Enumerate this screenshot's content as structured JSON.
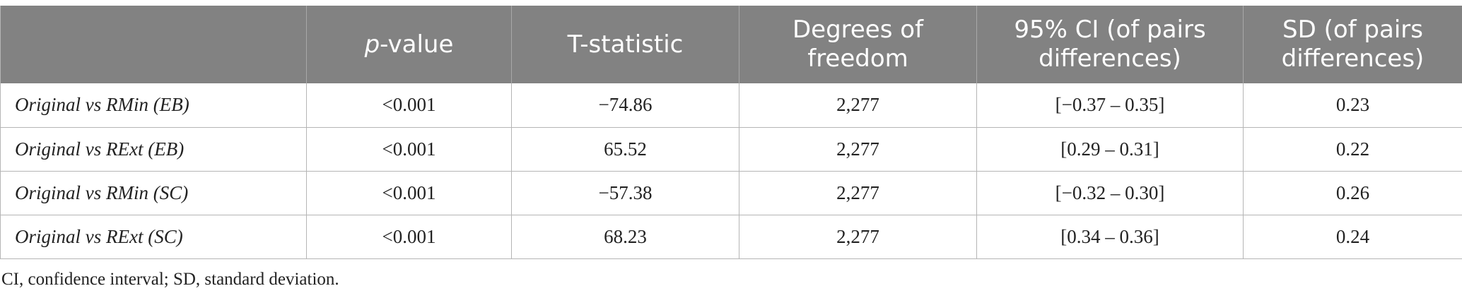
{
  "table": {
    "headers": [
      {
        "prefix": "",
        "label": ""
      },
      {
        "prefix": "p",
        "label": "-value"
      },
      {
        "prefix": "",
        "label": "T-statistic"
      },
      {
        "prefix": "",
        "label": "Degrees of freedom"
      },
      {
        "prefix": "",
        "label": "95% CI (of pairs differences)"
      },
      {
        "prefix": "",
        "label": "SD (of pairs differences)"
      }
    ],
    "rows": [
      [
        "Original vs RMin (EB)",
        "<0.001",
        "−74.86",
        "2,277",
        "[−0.37 – 0.35]",
        "0.23"
      ],
      [
        "Original vs RExt (EB)",
        "<0.001",
        "65.52",
        "2,277",
        "[0.29 – 0.31]",
        "0.22"
      ],
      [
        "Original vs RMin (SC)",
        "<0.001",
        "−57.38",
        "2,277",
        "[−0.32 – 0.30]",
        "0.26"
      ],
      [
        "Original vs RExt (SC)",
        "<0.001",
        "68.23",
        "2,277",
        "[0.34 – 0.36]",
        "0.24"
      ]
    ]
  },
  "footnote": "CI, confidence interval; SD, standard deviation."
}
